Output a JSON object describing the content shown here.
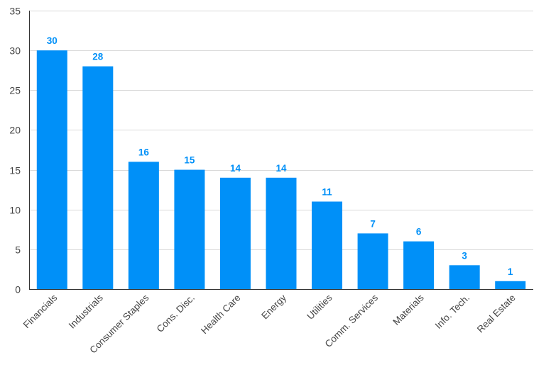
{
  "chart_data": {
    "type": "bar",
    "title": "",
    "xlabel": "",
    "ylabel": "",
    "categories": [
      "Financials",
      "Industrials",
      "Consumer Staples",
      "Cons. Disc.",
      "Health Care",
      "Energy",
      "Utilities",
      "Comm. Services",
      "Materials",
      "Info. Tech.",
      "Real Estate"
    ],
    "values": [
      30,
      28,
      16,
      15,
      14,
      14,
      11,
      7,
      6,
      3,
      1
    ],
    "ylim": [
      0,
      35
    ],
    "yticks": [
      0,
      5,
      10,
      15,
      20,
      25,
      30,
      35
    ],
    "grid": true,
    "legend": "none",
    "data_labels": true,
    "colors": {
      "bar": "#0090F8",
      "data_label": "#0090F8"
    }
  }
}
